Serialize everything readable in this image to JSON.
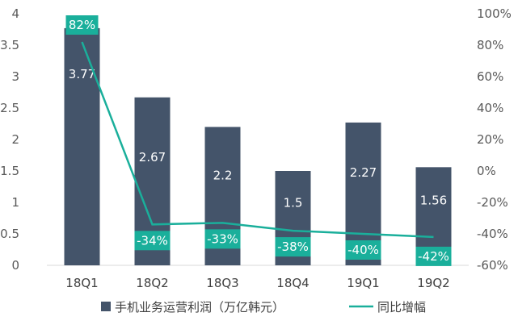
{
  "chart_data": {
    "type": "bar+line",
    "categories": [
      "18Q1",
      "18Q2",
      "18Q3",
      "18Q4",
      "19Q1",
      "19Q2"
    ],
    "series": [
      {
        "name": "手机业务运营利润（万亿韩元）",
        "type": "bar",
        "axis": "left",
        "values": [
          3.77,
          2.67,
          2.2,
          1.5,
          2.27,
          1.56
        ],
        "labels": [
          "3.77",
          "2.67",
          "2.2",
          "1.5",
          "2.27",
          "1.56"
        ],
        "color": "#44546a"
      },
      {
        "name": "同比增幅",
        "type": "line",
        "axis": "right",
        "values": [
          82,
          -34,
          -33,
          -38,
          -40,
          -42
        ],
        "labels": [
          "82%",
          "-34%",
          "-33%",
          "-38%",
          "-40%",
          "-42%"
        ],
        "color": "#1aaf9b"
      }
    ],
    "y_left": {
      "min": 0,
      "max": 4,
      "ticks": [
        "0",
        "0.5",
        "1",
        "1.5",
        "2",
        "2.5",
        "3",
        "3.5",
        "4"
      ]
    },
    "y_right": {
      "min": -60,
      "max": 100,
      "ticks": [
        "-60%",
        "-40%",
        "-20%",
        "0%",
        "20%",
        "40%",
        "60%",
        "80%",
        "100%"
      ]
    },
    "grid": false,
    "legend": "bottom",
    "title": ""
  }
}
